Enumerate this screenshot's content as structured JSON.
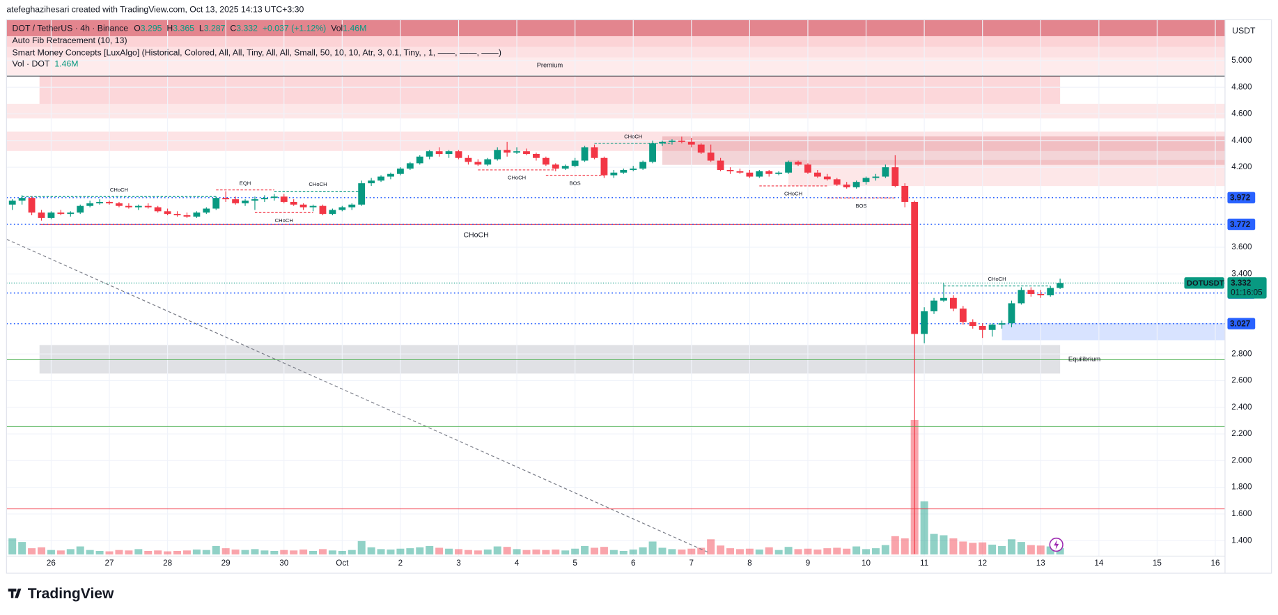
{
  "page": {
    "caption": "atefeghazihesari created with TradingView.com, Oct 13, 2025 14:13 UTC+3:30",
    "brand": "TradingView"
  },
  "chart_data": {
    "type": "candlestick",
    "currency": "USDT",
    "legend": {
      "symbol": "DOT / TetherUS · 4h · Binance",
      "o_label": "O",
      "h_label": "H",
      "l_label": "L",
      "c_label": "C",
      "change": "+0.037 (+1.12%)",
      "vol_label": "Vol",
      "vol_value": "1.46M",
      "indicators": [
        "Auto Fib Retracement (10, 13)",
        "Smart Money Concepts [LuxAlgo] (Historical, Colored, All, All, Tiny, All, All, Small, 50, 10, 10, Atr, 3, 0.1, Tiny, , 1, ——, ——, ——)"
      ],
      "volume_indicator": "Vol · DOT",
      "volume_indicator_value": "1.46M"
    },
    "up_color": "#089981",
    "down_color": "#f23645",
    "volume_up_color": "rgba(8,153,129,0.45)",
    "volume_down_color": "rgba(242,54,69,0.45)",
    "grid": true,
    "xlim": [
      -0.6,
      125
    ],
    "ylim": [
      1.284,
      5.306
    ],
    "xticks": [
      {
        "value": 4,
        "label": "26"
      },
      {
        "value": 10,
        "label": "27"
      },
      {
        "value": 16,
        "label": "28"
      },
      {
        "value": 22,
        "label": "29"
      },
      {
        "value": 28,
        "label": "30"
      },
      {
        "value": 34,
        "label": "Oct"
      },
      {
        "value": 40,
        "label": "2"
      },
      {
        "value": 46,
        "label": "3"
      },
      {
        "value": 52,
        "label": "4"
      },
      {
        "value": 58,
        "label": "5"
      },
      {
        "value": 64,
        "label": "6"
      },
      {
        "value": 70,
        "label": "7"
      },
      {
        "value": 76,
        "label": "8"
      },
      {
        "value": 82,
        "label": "9"
      },
      {
        "value": 88,
        "label": "10"
      },
      {
        "value": 94,
        "label": "11"
      },
      {
        "value": 100,
        "label": "12"
      },
      {
        "value": 106,
        "label": "13"
      },
      {
        "value": 112,
        "label": "14"
      },
      {
        "value": 118,
        "label": "15"
      },
      {
        "value": 124,
        "label": "16"
      }
    ],
    "yticks": [
      {
        "value": 5,
        "label": "5.000"
      },
      {
        "value": 4.8,
        "label": "4.800"
      },
      {
        "value": 4.6,
        "label": "4.600"
      },
      {
        "value": 4.4,
        "label": "4.400"
      },
      {
        "value": 4.2,
        "label": "4.200"
      },
      {
        "value": 3.6,
        "label": "3.600"
      },
      {
        "value": 3.4,
        "label": "3.400"
      },
      {
        "value": 2.8,
        "label": "2.800"
      },
      {
        "value": 2.6,
        "label": "2.600"
      },
      {
        "value": 2.4,
        "label": "2.400"
      },
      {
        "value": 2.2,
        "label": "2.200"
      },
      {
        "value": 2,
        "label": "2.000"
      },
      {
        "value": 1.8,
        "label": "1.800"
      },
      {
        "value": 1.6,
        "label": "1.600"
      },
      {
        "value": 1.4,
        "label": "1.400"
      }
    ],
    "ohlc": [
      [
        3.92,
        3.96,
        3.88,
        3.95
      ],
      [
        3.95,
        3.99,
        3.92,
        3.97
      ],
      [
        3.97,
        3.98,
        3.84,
        3.86
      ],
      [
        3.86,
        3.88,
        3.8,
        3.82
      ],
      [
        3.82,
        3.87,
        3.81,
        3.86
      ],
      [
        3.86,
        3.88,
        3.84,
        3.85
      ],
      [
        3.85,
        3.87,
        3.83,
        3.86
      ],
      [
        3.86,
        3.92,
        3.85,
        3.91
      ],
      [
        3.91,
        3.95,
        3.9,
        3.93
      ],
      [
        3.93,
        3.96,
        3.92,
        3.94
      ],
      [
        3.94,
        3.95,
        3.92,
        3.93
      ],
      [
        3.93,
        3.94,
        3.9,
        3.91
      ],
      [
        3.91,
        3.93,
        3.89,
        3.9
      ],
      [
        3.9,
        3.92,
        3.88,
        3.91
      ],
      [
        3.91,
        3.93,
        3.89,
        3.9
      ],
      [
        3.9,
        3.91,
        3.86,
        3.87
      ],
      [
        3.87,
        3.89,
        3.84,
        3.85
      ],
      [
        3.85,
        3.87,
        3.83,
        3.84
      ],
      [
        3.84,
        3.86,
        3.82,
        3.83
      ],
      [
        3.83,
        3.87,
        3.82,
        3.86
      ],
      [
        3.86,
        3.9,
        3.85,
        3.89
      ],
      [
        3.89,
        3.98,
        3.88,
        3.97
      ],
      [
        3.97,
        4.02,
        3.94,
        3.96
      ],
      [
        3.96,
        3.98,
        3.92,
        3.93
      ],
      [
        3.93,
        3.96,
        3.91,
        3.95
      ],
      [
        3.95,
        3.98,
        3.88,
        3.96
      ],
      [
        3.96,
        3.99,
        3.94,
        3.97
      ],
      [
        3.97,
        4.0,
        3.95,
        3.98
      ],
      [
        3.98,
        4.0,
        3.93,
        3.94
      ],
      [
        3.94,
        3.96,
        3.91,
        3.92
      ],
      [
        3.92,
        3.93,
        3.88,
        3.9
      ],
      [
        3.9,
        3.92,
        3.87,
        3.91
      ],
      [
        3.91,
        3.92,
        3.84,
        3.85
      ],
      [
        3.85,
        3.89,
        3.84,
        3.88
      ],
      [
        3.88,
        3.91,
        3.87,
        3.9
      ],
      [
        3.9,
        3.93,
        3.88,
        3.92
      ],
      [
        3.92,
        4.1,
        3.91,
        4.08
      ],
      [
        4.08,
        4.12,
        4.06,
        4.1
      ],
      [
        4.1,
        4.14,
        4.09,
        4.13
      ],
      [
        4.13,
        4.16,
        4.11,
        4.15
      ],
      [
        4.15,
        4.2,
        4.14,
        4.19
      ],
      [
        4.19,
        4.24,
        4.18,
        4.23
      ],
      [
        4.23,
        4.29,
        4.22,
        4.28
      ],
      [
        4.28,
        4.33,
        4.26,
        4.32
      ],
      [
        4.32,
        4.35,
        4.28,
        4.3
      ],
      [
        4.3,
        4.33,
        4.27,
        4.32
      ],
      [
        4.32,
        4.33,
        4.26,
        4.27
      ],
      [
        4.27,
        4.29,
        4.22,
        4.24
      ],
      [
        4.24,
        4.26,
        4.21,
        4.22
      ],
      [
        4.22,
        4.27,
        4.21,
        4.26
      ],
      [
        4.26,
        4.35,
        4.25,
        4.33
      ],
      [
        4.33,
        4.39,
        4.28,
        4.31
      ],
      [
        4.31,
        4.35,
        4.3,
        4.32
      ],
      [
        4.32,
        4.34,
        4.29,
        4.3
      ],
      [
        4.3,
        4.31,
        4.25,
        4.27
      ],
      [
        4.27,
        4.28,
        4.21,
        4.22
      ],
      [
        4.22,
        4.23,
        4.17,
        4.19
      ],
      [
        4.19,
        4.22,
        4.18,
        4.21
      ],
      [
        4.21,
        4.27,
        4.2,
        4.25
      ],
      [
        4.25,
        4.36,
        4.24,
        4.35
      ],
      [
        4.35,
        4.37,
        4.26,
        4.27
      ],
      [
        4.27,
        4.28,
        4.12,
        4.14
      ],
      [
        4.14,
        4.18,
        4.12,
        4.16
      ],
      [
        4.16,
        4.19,
        4.15,
        4.18
      ],
      [
        4.18,
        4.21,
        4.17,
        4.19
      ],
      [
        4.19,
        4.25,
        4.18,
        4.24
      ],
      [
        4.24,
        4.4,
        4.23,
        4.38
      ],
      [
        4.38,
        4.4,
        4.36,
        4.39
      ],
      [
        4.39,
        4.41,
        4.37,
        4.4
      ],
      [
        4.4,
        4.43,
        4.38,
        4.39
      ],
      [
        4.39,
        4.42,
        4.35,
        4.37
      ],
      [
        4.37,
        4.38,
        4.3,
        4.31
      ],
      [
        4.31,
        4.37,
        4.24,
        4.25
      ],
      [
        4.25,
        4.27,
        4.17,
        4.18
      ],
      [
        4.18,
        4.2,
        4.15,
        4.17
      ],
      [
        4.17,
        4.19,
        4.15,
        4.16
      ],
      [
        4.16,
        4.18,
        4.12,
        4.13
      ],
      [
        4.13,
        4.18,
        4.12,
        4.17
      ],
      [
        4.17,
        4.18,
        4.13,
        4.15
      ],
      [
        4.15,
        4.17,
        4.14,
        4.16
      ],
      [
        4.16,
        4.25,
        4.15,
        4.24
      ],
      [
        4.24,
        4.25,
        4.21,
        4.22
      ],
      [
        4.22,
        4.23,
        4.15,
        4.16
      ],
      [
        4.16,
        4.18,
        4.12,
        4.13
      ],
      [
        4.13,
        4.15,
        4.1,
        4.11
      ],
      [
        4.11,
        4.12,
        4.06,
        4.07
      ],
      [
        4.07,
        4.09,
        4.04,
        4.05
      ],
      [
        4.05,
        4.1,
        4.04,
        4.09
      ],
      [
        4.09,
        4.13,
        4.07,
        4.12
      ],
      [
        4.12,
        4.15,
        4.1,
        4.13
      ],
      [
        4.13,
        4.22,
        4.12,
        4.2
      ],
      [
        4.2,
        4.29,
        4.05,
        4.06
      ],
      [
        4.06,
        4.08,
        3.9,
        3.94
      ],
      [
        3.94,
        3.95,
        1.3,
        2.95
      ],
      [
        2.95,
        3.15,
        2.88,
        3.12
      ],
      [
        3.12,
        3.22,
        3.1,
        3.2
      ],
      [
        3.2,
        3.33,
        3.19,
        3.22
      ],
      [
        3.22,
        3.24,
        3.12,
        3.14
      ],
      [
        3.14,
        3.16,
        3.02,
        3.04
      ],
      [
        3.04,
        3.06,
        2.99,
        3.01
      ],
      [
        3.01,
        3.03,
        2.92,
        2.98
      ],
      [
        2.98,
        3.03,
        2.93,
        3.02
      ],
      [
        3.02,
        3.05,
        2.99,
        3.03
      ],
      [
        3.03,
        3.2,
        3.0,
        3.18
      ],
      [
        3.18,
        3.3,
        3.17,
        3.28
      ],
      [
        3.28,
        3.3,
        3.23,
        3.25
      ],
      [
        3.25,
        3.28,
        3.22,
        3.24
      ],
      [
        3.24,
        3.31,
        3.23,
        3.295
      ],
      [
        3.295,
        3.365,
        3.287,
        3.332
      ]
    ],
    "volume": [
      3600000,
      2800000,
      1400000,
      1600000,
      1000000,
      900000,
      1200000,
      1800000,
      1000000,
      800000,
      700000,
      1000000,
      900000,
      1200000,
      800000,
      900000,
      700000,
      800000,
      900000,
      1100000,
      1000000,
      1900000,
      1400000,
      1100000,
      1000000,
      1200000,
      900000,
      800000,
      1000000,
      900000,
      1100000,
      800000,
      1200000,
      900000,
      800000,
      1000000,
      3000000,
      1600000,
      1200000,
      1100000,
      1300000,
      1400000,
      1600000,
      1900000,
      1500000,
      1300000,
      1200000,
      1000000,
      900000,
      1100000,
      1800000,
      1700000,
      1200000,
      1000000,
      1100000,
      1000000,
      1100000,
      900000,
      1300000,
      1900000,
      1500000,
      1700000,
      1000000,
      800000,
      1100000,
      1600000,
      2900000,
      1500000,
      1200000,
      1100000,
      1300000,
      1500000,
      3400000,
      2000000,
      1400000,
      1200000,
      1300000,
      1100000,
      1600000,
      1000000,
      1700000,
      1200000,
      1300000,
      1100000,
      1400000,
      1500000,
      1300000,
      1800000,
      1200000,
      1400000,
      2100000,
      4100000,
      3600000,
      30100000,
      11900000,
      4600000,
      4300000,
      3600000,
      2900000,
      2600000,
      2700000,
      2200000,
      1900000,
      3400000,
      2800000,
      2100000,
      2000000,
      1800000,
      1460000
    ],
    "zones": [
      {
        "x": [
          -0.6,
          125
        ],
        "y": [
          5.183,
          5.306
        ],
        "color": "rgba(222,112,122,0.85)"
      },
      {
        "x": [
          -0.6,
          125
        ],
        "y": [
          5.104,
          5.183
        ],
        "color": "rgba(242,54,69,0.22)"
      },
      {
        "x": [
          -0.6,
          125
        ],
        "y": [
          5.024,
          5.104
        ],
        "color": "rgba(242,54,69,0.15)"
      },
      {
        "x": [
          -0.6,
          125
        ],
        "y": [
          4.89,
          5.024
        ],
        "color": "rgba(242,54,69,0.1)"
      },
      {
        "x": [
          2.8,
          108
        ],
        "y": [
          4.676,
          4.884
        ],
        "color": "rgba(242,54,69,0.2)",
        "label": "Premium",
        "label_position": "above",
        "label_color": "#f23645"
      },
      {
        "x": [
          -0.6,
          125
        ],
        "y": [
          4.566,
          4.676
        ],
        "color": "rgba(242,54,69,0.12)"
      },
      {
        "x": [
          -0.6,
          125
        ],
        "y": [
          4.322,
          4.468
        ],
        "color": "rgba(242,54,69,0.14)"
      },
      {
        "x": [
          67,
          125
        ],
        "y": [
          4.218,
          4.432
        ],
        "color": "rgba(200,60,72,0.22)"
      },
      {
        "x": [
          80,
          125
        ],
        "y": [
          4.059,
          4.254
        ],
        "color": "rgba(242,54,69,0.12)"
      },
      {
        "x": [
          2.8,
          108
        ],
        "y": [
          2.653,
          2.867
        ],
        "color": "rgba(178,181,190,0.4)",
        "label": "Equilibrium",
        "label_position": "right",
        "label_color": "#b2b5be"
      },
      {
        "x": [
          102,
          125
        ],
        "y": [
          2.903,
          3.032
        ],
        "color": "rgba(41,98,255,0.18)"
      }
    ],
    "levels": [
      {
        "value": 4.884,
        "color": "#131722"
      },
      {
        "value": 2.757,
        "color": "#4caf50"
      },
      {
        "value": 2.256,
        "color": "#4caf50"
      },
      {
        "value": 1.638,
        "color": "#f23645"
      }
    ],
    "structures": [
      {
        "label": "CHoCH",
        "from": 1,
        "to": 21,
        "price": 3.98,
        "color": "#089981",
        "side": "above"
      },
      {
        "label": "EQH",
        "from": 21,
        "to": 27,
        "price": 4.03,
        "color": "#f23645",
        "side": "above"
      },
      {
        "label": "CHoCH",
        "from": 27,
        "to": 36,
        "price": 4.02,
        "color": "#089981",
        "side": "above"
      },
      {
        "label": "CHoCH",
        "from": 25,
        "to": 31,
        "price": 3.86,
        "color": "#f23645",
        "side": "below"
      },
      {
        "label": "CHoCH",
        "from": 48,
        "to": 56,
        "price": 4.18,
        "color": "#f23645",
        "side": "below"
      },
      {
        "label": "BOS",
        "from": 55,
        "to": 61,
        "price": 4.14,
        "color": "#f23645",
        "side": "below"
      },
      {
        "label": "CHoCH",
        "from": 60,
        "to": 68,
        "price": 4.38,
        "color": "#089981",
        "side": "above"
      },
      {
        "label": "CHoCH",
        "from": 77,
        "to": 84,
        "price": 4.06,
        "color": "#f23645",
        "side": "below"
      },
      {
        "label": "BOS",
        "from": 84,
        "to": 91,
        "price": 3.97,
        "color": "#f23645",
        "side": "below"
      },
      {
        "label": "CHoCH",
        "from": 96,
        "to": 107,
        "price": 3.31,
        "color": "#089981",
        "side": "above"
      },
      {
        "label": "CHoCH",
        "from": 2.8,
        "to": 92.8,
        "price": 3.771,
        "color": "#f23645",
        "side": "below",
        "solid": true
      }
    ],
    "price_lines": [
      {
        "value": 3.972,
        "color": "#2962ff"
      },
      {
        "value": 3.772,
        "color": "#2962ff"
      },
      {
        "value": 3.257,
        "color": "#2962ff"
      },
      {
        "value": 3.027,
        "color": "#2962ff"
      }
    ],
    "last_price": {
      "symbol": "DOTUSDT",
      "countdown": "01:16:05",
      "color": "#089981"
    },
    "trendline": {
      "x": [
        -0.6,
        71.8
      ],
      "y": [
        3.66,
        1.31
      ],
      "color": "#787b86"
    }
  }
}
